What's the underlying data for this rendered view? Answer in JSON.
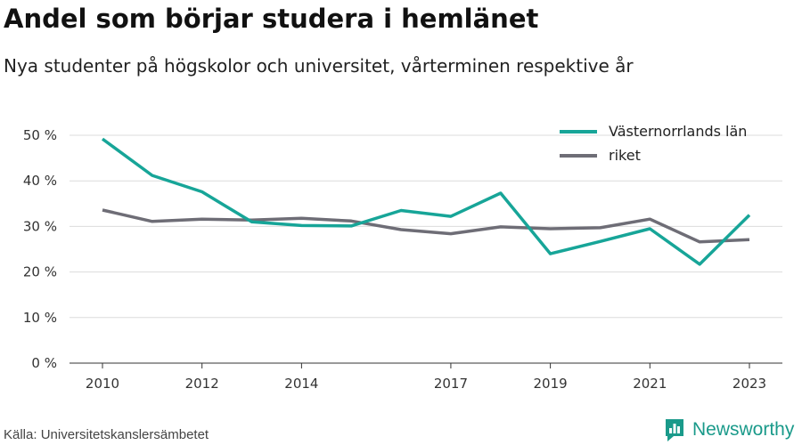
{
  "header": {
    "title": "Andel som börjar studera i hemlänet",
    "subtitle": "Nya studenter på högskolor och universitet, vårterminen respektive år"
  },
  "footer": {
    "source": "Källa: Universitetskanslersämbetet",
    "brand": "Newsworthy"
  },
  "chart_data": {
    "type": "line",
    "title": "Andel som börjar studera i hemlänet",
    "subtitle": "Nya studenter på högskolor och universitet, vårterminen respektive år",
    "xlabel": "",
    "ylabel": "",
    "x": [
      2010,
      2011,
      2012,
      2013,
      2014,
      2015,
      2016,
      2017,
      2018,
      2019,
      2020,
      2021,
      2022,
      2023
    ],
    "x_tick_values": [
      2010,
      2012,
      2014,
      2017,
      2019,
      2021,
      2023
    ],
    "x_tick_labels": [
      "2010",
      "2012",
      "2014",
      "2017",
      "2019",
      "2021",
      "2023"
    ],
    "y_ticks": [
      0,
      10,
      20,
      30,
      40,
      50
    ],
    "y_tick_labels": [
      "0 %",
      "10 %",
      "20 %",
      "30 %",
      "40 %",
      "50 %"
    ],
    "ylim": [
      0,
      50
    ],
    "grid": true,
    "legend_position": "top-right",
    "series": [
      {
        "name": "Västernorrlands län",
        "color": "#17a598",
        "values": [
          49.2,
          41.2,
          37.6,
          31.0,
          30.2,
          30.1,
          33.5,
          32.2,
          37.3,
          24.0,
          26.7,
          29.5,
          21.7,
          32.5
        ]
      },
      {
        "name": "riket",
        "color": "#6e6d76",
        "values": [
          33.6,
          31.1,
          31.6,
          31.4,
          31.8,
          31.2,
          29.3,
          28.4,
          29.9,
          29.5,
          29.7,
          31.6,
          26.6,
          27.1
        ]
      }
    ]
  }
}
